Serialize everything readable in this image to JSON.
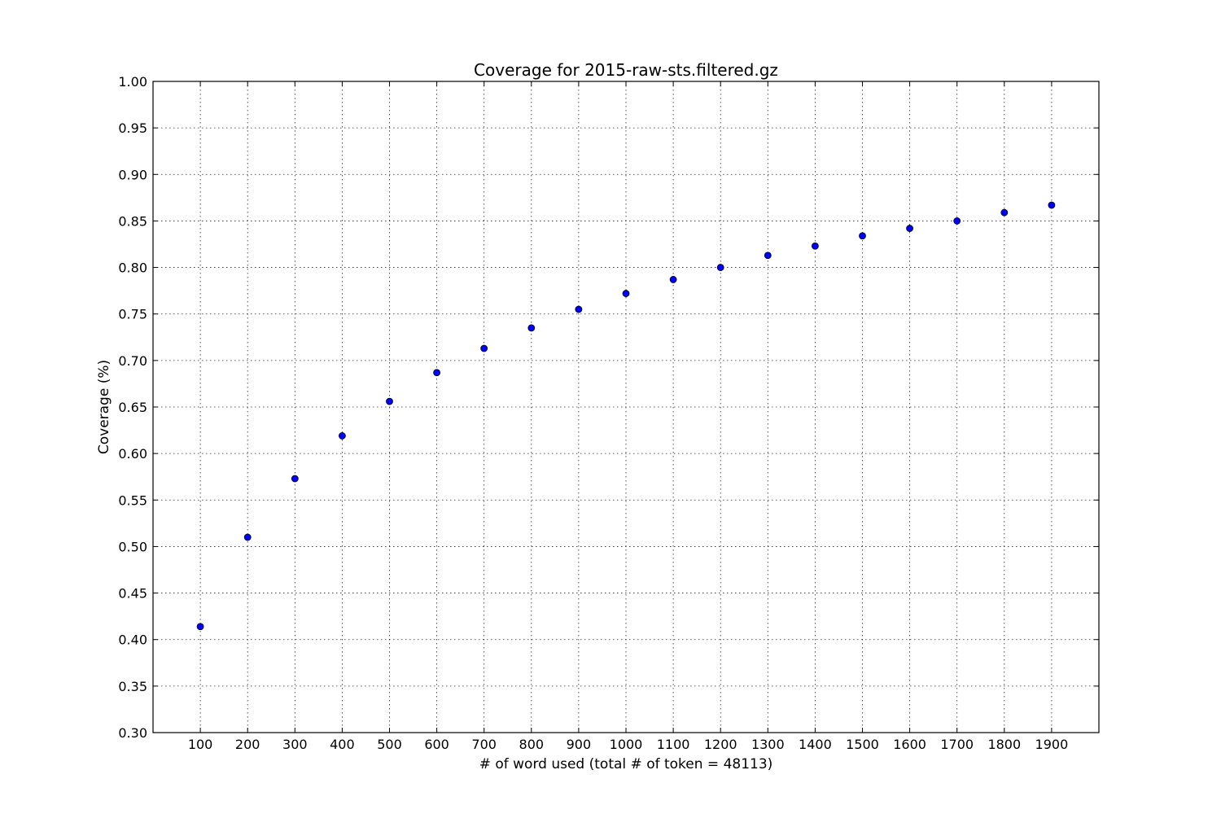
{
  "chart_data": {
    "type": "scatter",
    "title": "Coverage for 2015-raw-sts.filtered.gz",
    "xlabel": "# of word used (total # of token = 48113)",
    "ylabel": "Coverage (%)",
    "xlim": [
      0,
      2000
    ],
    "ylim": [
      0.3,
      1.0
    ],
    "xticks": [
      100,
      200,
      300,
      400,
      500,
      600,
      700,
      800,
      900,
      1000,
      1100,
      1200,
      1300,
      1400,
      1500,
      1600,
      1700,
      1800,
      1900
    ],
    "yticks": [
      "0.30",
      "0.35",
      "0.40",
      "0.45",
      "0.50",
      "0.55",
      "0.60",
      "0.65",
      "0.70",
      "0.75",
      "0.80",
      "0.85",
      "0.90",
      "0.95",
      "1.00"
    ],
    "grid": true,
    "marker_color": "#0000ff",
    "x": [
      100,
      200,
      300,
      400,
      500,
      600,
      700,
      800,
      900,
      1000,
      1100,
      1200,
      1300,
      1400,
      1500,
      1600,
      1700,
      1800,
      1900
    ],
    "y": [
      0.414,
      0.51,
      0.573,
      0.619,
      0.656,
      0.687,
      0.713,
      0.735,
      0.755,
      0.772,
      0.787,
      0.8,
      0.813,
      0.823,
      0.834,
      0.842,
      0.85,
      0.859,
      0.867
    ]
  }
}
